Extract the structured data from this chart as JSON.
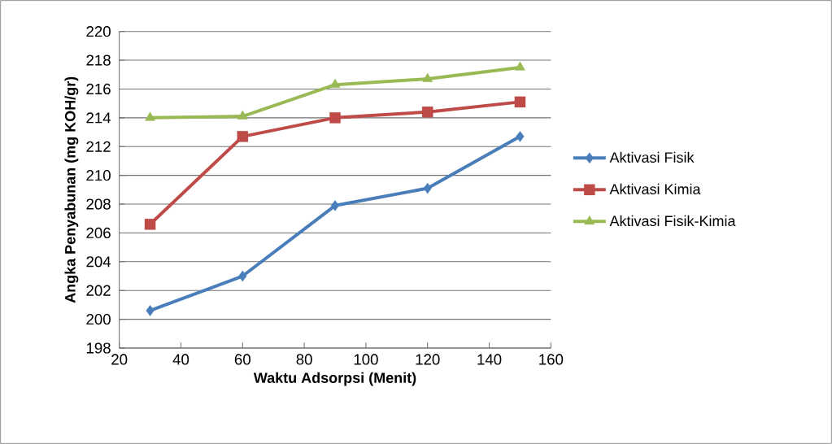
{
  "chart_data": {
    "type": "line",
    "xlabel": "Waktu Adsorpsi (Menit)",
    "ylabel": "Angka Penyabunan (mg KOH/gr)",
    "x": [
      30,
      60,
      90,
      120,
      150
    ],
    "series": [
      {
        "name": "Aktivasi Fisik",
        "color": "#4a7ebb",
        "marker": "diamond",
        "values": [
          200.6,
          203.0,
          207.9,
          209.1,
          212.7
        ]
      },
      {
        "name": "Aktivasi Kimia",
        "color": "#be4b48",
        "marker": "square",
        "values": [
          206.6,
          212.7,
          214.0,
          214.4,
          215.1
        ]
      },
      {
        "name": "Aktivasi Fisik-Kimia",
        "color": "#98b954",
        "marker": "triangle",
        "values": [
          214.0,
          214.1,
          216.3,
          216.7,
          217.5
        ]
      }
    ],
    "xlim": [
      20,
      160
    ],
    "xticks": [
      20,
      40,
      60,
      80,
      100,
      120,
      140,
      160
    ],
    "ylim": [
      198,
      220
    ],
    "yticks": [
      198,
      200,
      202,
      204,
      206,
      208,
      210,
      212,
      214,
      216,
      218,
      220
    ],
    "grid": "y",
    "legend": "right",
    "line_style": "solid"
  }
}
